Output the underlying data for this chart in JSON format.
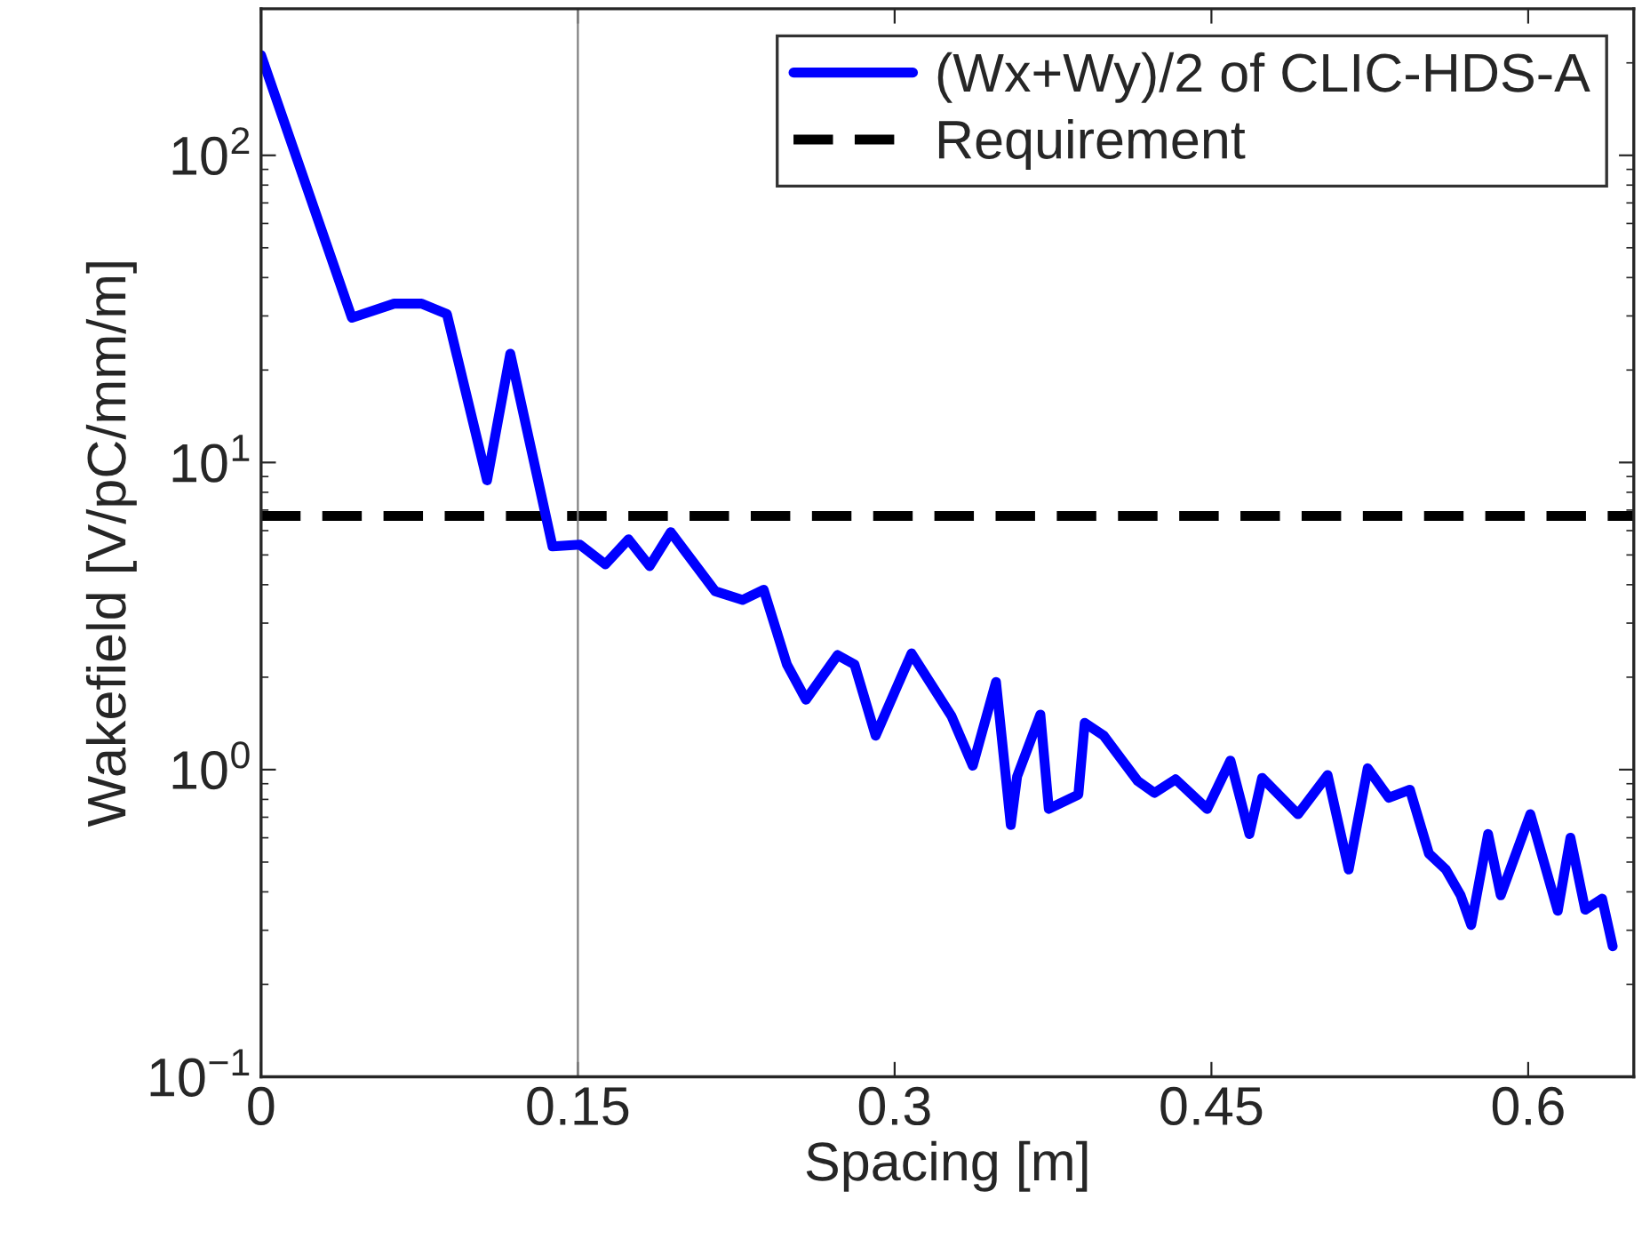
{
  "chart_data": {
    "type": "line",
    "xlabel": "Spacing [m]",
    "ylabel": "Wakefield [V/pC/mm/m]",
    "x": [
      0,
      0.043,
      0.063,
      0.076,
      0.088,
      0.107,
      0.118,
      0.138,
      0.151,
      0.163,
      0.174,
      0.184,
      0.194,
      0.215,
      0.228,
      0.238,
      0.249,
      0.258,
      0.273,
      0.281,
      0.291,
      0.308,
      0.327,
      0.337,
      0.348,
      0.355,
      0.358,
      0.369,
      0.373,
      0.387,
      0.39,
      0.399,
      0.415,
      0.423,
      0.433,
      0.448,
      0.459,
      0.468,
      0.474,
      0.491,
      0.505,
      0.515,
      0.524,
      0.534,
      0.544,
      0.553,
      0.561,
      0.568,
      0.573,
      0.581,
      0.587,
      0.601,
      0.614,
      0.62,
      0.627,
      0.635,
      0.64
    ],
    "series": [
      {
        "name": "(Wx+Wy)/2 of CLIC-HDS-A",
        "color": "#0000ff",
        "values": [
          212,
          29.6,
          32.9,
          32.9,
          30.4,
          8.75,
          22.6,
          5.33,
          5.4,
          4.66,
          5.62,
          4.6,
          5.93,
          3.81,
          3.57,
          3.85,
          2.2,
          1.69,
          2.36,
          2.2,
          1.29,
          2.39,
          1.49,
          1.03,
          1.93,
          0.66,
          0.95,
          1.51,
          0.745,
          0.83,
          1.42,
          1.29,
          0.92,
          0.84,
          0.93,
          0.745,
          1.07,
          0.617,
          0.94,
          0.716,
          0.96,
          0.473,
          1.01,
          0.81,
          0.86,
          0.533,
          0.473,
          0.39,
          0.312,
          0.617,
          0.39,
          0.716,
          0.347,
          0.6,
          0.35,
          0.38,
          0.266
        ]
      }
    ],
    "ref_lines": [
      {
        "axis": "y",
        "value": 6.7,
        "label": "Requirement",
        "color": "#000000",
        "line_style": "dashed"
      },
      {
        "axis": "x",
        "value": 0.15,
        "label": null,
        "color": "#808080",
        "line_style": "solid"
      }
    ],
    "log": "y",
    "xlim": [
      0,
      0.65
    ],
    "ylim": [
      0.1,
      300
    ],
    "xticks": [
      0,
      0.15,
      0.3,
      0.45,
      0.6
    ],
    "yticks": [
      {
        "value": 0.1,
        "label": "10$^{−1}$"
      },
      {
        "value": 1,
        "label": "10$^{0}$"
      },
      {
        "value": 10,
        "label": "10$^{1}$"
      },
      {
        "value": 100,
        "label": "10$^{2}$"
      }
    ],
    "grid": false,
    "legend": "top right"
  }
}
